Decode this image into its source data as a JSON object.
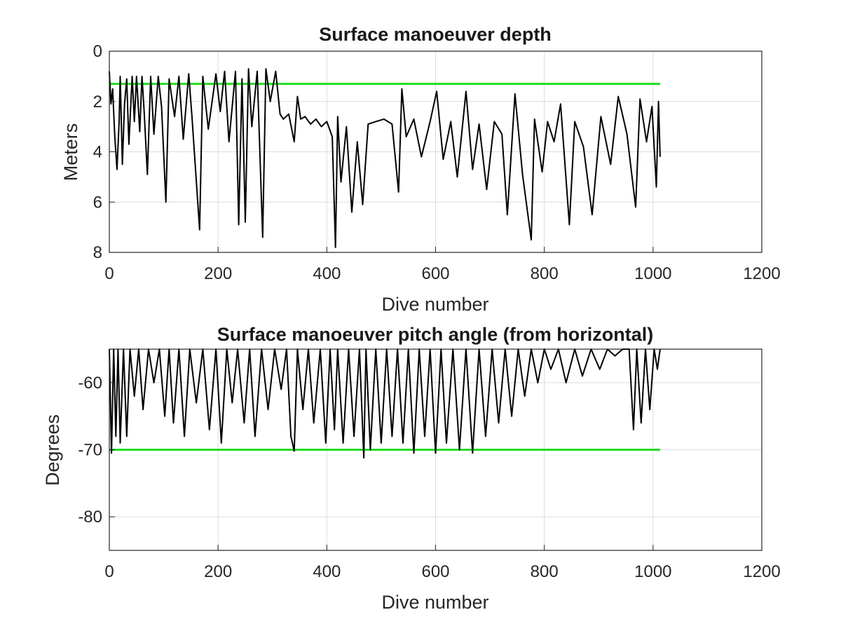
{
  "chart_data": [
    {
      "type": "line",
      "title": "Surface manoeuver depth",
      "xlabel": "Dive number",
      "ylabel": "Meters",
      "xlim": [
        0,
        1200
      ],
      "ylim": [
        0,
        8
      ],
      "y_reversed": true,
      "xticks": [
        "0",
        "200",
        "400",
        "600",
        "800",
        "1000",
        "1200"
      ],
      "yticks": [
        "0",
        "2",
        "4",
        "6",
        "8"
      ],
      "grid": true,
      "line_color": "#000000",
      "reference_line": {
        "y": 1.3,
        "x_range": [
          0,
          1013
        ],
        "color": "#22dd22"
      },
      "series": [
        {
          "x": [
            0,
            3,
            6,
            10,
            14,
            18,
            20,
            24,
            28,
            32,
            36,
            42,
            46,
            50,
            56,
            60,
            64,
            70,
            76,
            82,
            90,
            96,
            104,
            110,
            120,
            128,
            136,
            146,
            152,
            166,
            172,
            182,
            196,
            204,
            212,
            220,
            232,
            238,
            244,
            250,
            256,
            262,
            272,
            282,
            288,
            296,
            306,
            314,
            320,
            330,
            340,
            346,
            352,
            360,
            370,
            380,
            390,
            400,
            410,
            416,
            420,
            426,
            436,
            446,
            456,
            466,
            476,
            490,
            505,
            520,
            532,
            538,
            546,
            560,
            574,
            590,
            602,
            614,
            628,
            640,
            656,
            668,
            680,
            694,
            708,
            722,
            732,
            746,
            760,
            776,
            782,
            796,
            806,
            818,
            830,
            846,
            856,
            872,
            888,
            904,
            922,
            936,
            952,
            968,
            976,
            988,
            998,
            1006,
            1010,
            1013
          ],
          "y": [
            0.8,
            2.1,
            1.5,
            3.4,
            4.7,
            2.8,
            1.0,
            4.5,
            2.1,
            1.1,
            3.7,
            1.0,
            2.8,
            1.0,
            3.2,
            1.0,
            2.4,
            4.9,
            1.0,
            3.3,
            1.0,
            2.2,
            6.0,
            1.1,
            2.6,
            1.0,
            3.5,
            0.9,
            2.6,
            7.1,
            1.0,
            3.1,
            0.9,
            2.4,
            0.8,
            3.6,
            0.8,
            6.9,
            1.1,
            6.8,
            0.7,
            3.0,
            0.8,
            7.4,
            0.7,
            2.0,
            0.8,
            2.5,
            2.7,
            2.5,
            3.6,
            1.8,
            2.7,
            2.6,
            2.9,
            2.7,
            3.0,
            2.8,
            3.4,
            7.8,
            2.6,
            5.2,
            3.0,
            6.4,
            3.6,
            6.1,
            2.9,
            2.8,
            2.7,
            2.9,
            5.6,
            1.5,
            3.4,
            2.7,
            4.2,
            2.8,
            1.6,
            4.3,
            2.8,
            5.0,
            1.6,
            4.7,
            2.9,
            5.5,
            2.8,
            3.3,
            6.5,
            1.7,
            4.9,
            7.5,
            2.7,
            4.8,
            2.8,
            3.6,
            2.1,
            6.9,
            2.8,
            3.8,
            6.5,
            2.6,
            4.5,
            1.8,
            3.3,
            6.2,
            1.9,
            3.6,
            2.2,
            5.4,
            2.0,
            4.2
          ]
        }
      ]
    },
    {
      "type": "line",
      "title": "Surface manoeuver pitch angle (from horizontal)",
      "xlabel": "Dive number",
      "ylabel": "Degrees",
      "xlim": [
        0,
        1200
      ],
      "ylim": [
        -85,
        -55
      ],
      "xticks": [
        "0",
        "200",
        "400",
        "600",
        "800",
        "1000",
        "1200"
      ],
      "yticks": [
        "-60",
        "-70",
        "-80"
      ],
      "grid": true,
      "line_color": "#000000",
      "reference_line": {
        "y": -70,
        "x_range": [
          0,
          1013
        ],
        "color": "#22dd22"
      },
      "series": [
        {
          "x": [
            0,
            4,
            8,
            12,
            16,
            20,
            26,
            32,
            38,
            46,
            54,
            62,
            72,
            82,
            92,
            102,
            110,
            118,
            128,
            138,
            148,
            160,
            172,
            184,
            196,
            206,
            216,
            226,
            236,
            248,
            258,
            268,
            280,
            292,
            304,
            316,
            326,
            334,
            340,
            346,
            356,
            366,
            376,
            388,
            398,
            406,
            414,
            420,
            430,
            440,
            450,
            460,
            468,
            472,
            480,
            490,
            500,
            510,
            520,
            530,
            540,
            550,
            560,
            570,
            580,
            590,
            600,
            610,
            620,
            632,
            644,
            656,
            668,
            680,
            692,
            704,
            716,
            728,
            740,
            752,
            764,
            776,
            788,
            800,
            812,
            826,
            840,
            856,
            870,
            886,
            902,
            916,
            930,
            944,
            956,
            964,
            970,
            978,
            986,
            994,
            1002,
            1008,
            1013
          ],
          "y": [
            -55,
            -70.5,
            -55,
            -68,
            -55,
            -69,
            -55,
            -68,
            -55,
            -62,
            -55,
            -64,
            -55,
            -60,
            -55,
            -65,
            -55,
            -66,
            -55,
            -68,
            -55,
            -63,
            -55,
            -67,
            -55,
            -69,
            -55,
            -63,
            -55,
            -66,
            -55,
            -68,
            -55,
            -64,
            -55,
            -61,
            -55,
            -68,
            -70.2,
            -55,
            -64,
            -55,
            -66,
            -55,
            -69,
            -55,
            -67,
            -55,
            -69,
            -55,
            -68,
            -55,
            -71.2,
            -55,
            -70,
            -55,
            -69,
            -55,
            -68,
            -55,
            -69,
            -55,
            -70.5,
            -55,
            -68,
            -55,
            -70.5,
            -55,
            -69,
            -55,
            -70,
            -55,
            -70.5,
            -55,
            -68,
            -55,
            -66,
            -55,
            -65,
            -55,
            -62,
            -55,
            -60,
            -55,
            -58,
            -55,
            -60,
            -55,
            -59,
            -55,
            -58,
            -55,
            -56,
            -55,
            -55,
            -67,
            -55,
            -66,
            -55,
            -64,
            -55,
            -58,
            -55
          ]
        }
      ]
    }
  ]
}
